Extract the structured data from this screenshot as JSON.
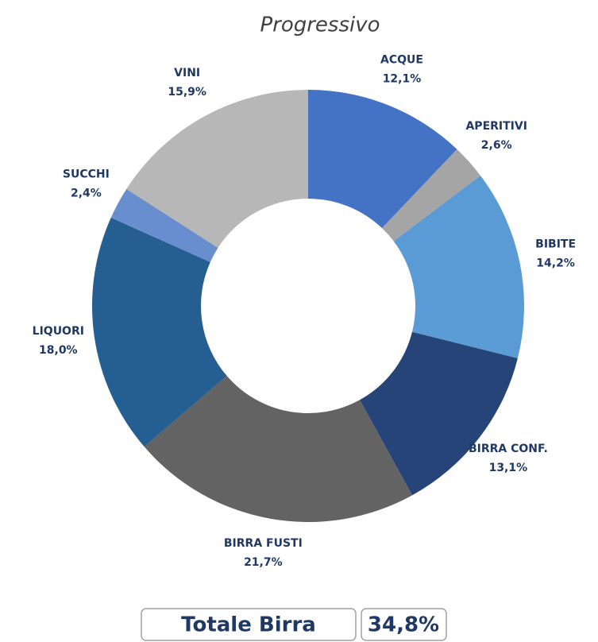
{
  "chart_data": {
    "type": "donut",
    "title": "Progressivo",
    "categories": [
      "ACQUE",
      "APERITIVI",
      "BIBITE",
      "BIRRA CONF.",
      "BIRRA FUSTI",
      "LIQUORI",
      "SUCCHI",
      "VINI"
    ],
    "values": [
      12.1,
      2.6,
      14.2,
      13.1,
      21.7,
      18.0,
      2.4,
      15.9
    ],
    "value_labels": [
      "12,1%",
      "2,6%",
      "14,2%",
      "13,1%",
      "21,7%",
      "18,0%",
      "2,4%",
      "15,9%"
    ],
    "colors": [
      "#4472c4",
      "#a5a5a5",
      "#5b9bd5",
      "#264478",
      "#636363",
      "#255e91",
      "#698ed0",
      "#b7b7b7"
    ],
    "total": {
      "label": "Totale Birra",
      "value": 34.8,
      "value_label": "34,8%"
    }
  }
}
